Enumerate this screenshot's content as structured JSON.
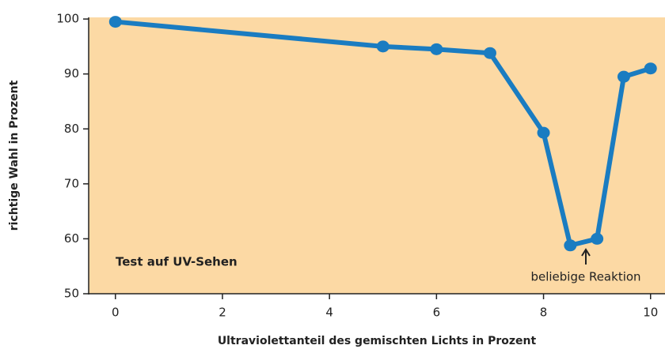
{
  "chart_data": {
    "type": "line",
    "xlabel": "Ultraviolettanteil des gemischten Lichts in Prozent",
    "ylabel": "richtige Wahl in Prozent",
    "annotations": [
      "Test auf UV-Sehen",
      "beliebige Reaktion"
    ],
    "x": [
      0,
      5,
      6,
      7,
      8,
      8.5,
      9,
      9.5,
      10
    ],
    "series": [
      {
        "color": "#1a7cc1",
        "values": [
          99.5,
          95,
          94.5,
          93.8,
          79.3,
          58.8,
          60,
          89.5,
          91
        ]
      }
    ],
    "xlim": [
      -0.5,
      10.27
    ],
    "xticks": [
      0,
      2,
      4,
      6,
      8,
      10
    ],
    "ylim": [
      50,
      100.3
    ],
    "yticks": [
      50,
      60,
      70,
      80,
      90,
      100
    ],
    "background": "#fcd9a4"
  }
}
